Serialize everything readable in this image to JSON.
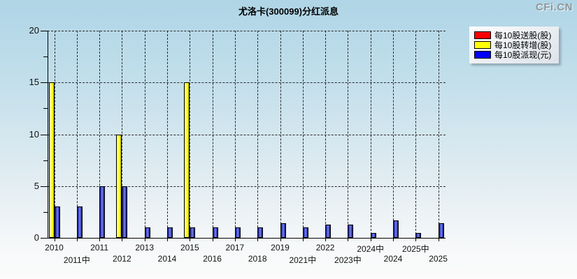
{
  "title": "尤洛卡(300099)分红派息",
  "watermark": "CFi.CN",
  "legend": [
    {
      "label": "每10股送股(股)",
      "color": "#ff0000"
    },
    {
      "label": "每10股转增(股)",
      "color": "#ffff00"
    },
    {
      "label": "每10股派现(元)",
      "color": "#0000ff"
    }
  ],
  "chart_data": {
    "type": "bar",
    "title": "尤洛卡(300099)分红派息",
    "categories": [
      "2010",
      "2011中",
      "2011",
      "2012",
      "2013",
      "2014",
      "2015",
      "2016",
      "2017",
      "2018",
      "2019",
      "2021中",
      "2022",
      "2023中",
      "2024中",
      "2024",
      "2025中",
      "2025"
    ],
    "series": [
      {
        "name": "每10股送股(股)",
        "color": "#ff0000",
        "values": [
          0,
          0,
          0,
          0,
          0,
          0,
          0,
          0,
          0,
          0,
          0,
          0,
          0,
          0,
          0,
          0,
          0,
          0
        ]
      },
      {
        "name": "每10股转增(股)",
        "color": "#ffff00",
        "values": [
          15,
          0,
          0,
          10,
          0,
          0,
          15,
          0,
          0,
          0,
          0,
          0,
          0,
          0,
          0,
          0,
          0,
          0
        ]
      },
      {
        "name": "每10股派现(元)",
        "color": "#0000ff",
        "values": [
          3,
          3,
          5,
          5,
          1,
          1,
          1,
          1,
          1,
          1,
          1.4,
          1,
          1.25,
          1.3,
          0.45,
          1.7,
          0.5,
          1.4
        ]
      }
    ],
    "xlabel": "",
    "ylabel": "",
    "ylim": [
      0,
      20
    ],
    "yticks": [
      0,
      5,
      10,
      15,
      20
    ],
    "grid": true,
    "legend_position": "top-right"
  }
}
